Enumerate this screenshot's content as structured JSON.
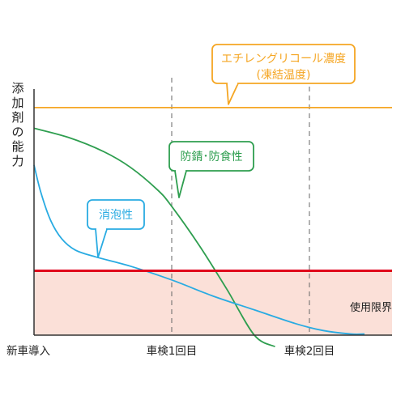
{
  "chart_data": {
    "type": "line",
    "ylabel": "添加剤の能力",
    "categories": [
      "新車導入",
      "車検1回目",
      "車検2回目"
    ],
    "x_range": [
      0,
      2.6
    ],
    "y_range": [
      0,
      100
    ],
    "limit": {
      "label": "使用限界",
      "value": 28
    },
    "series": [
      {
        "name": "エチレングリコール濃度",
        "name_sub": "(凍結温度)",
        "color": "#f5a623",
        "x": [
          0,
          2.6
        ],
        "y": [
          99,
          99
        ]
      },
      {
        "name": "防錆･防食性",
        "color": "#2e9e4f",
        "x": [
          0,
          0.25,
          0.5,
          0.7,
          0.9,
          1.0,
          1.2,
          1.4,
          1.6,
          1.75
        ],
        "y": [
          90,
          86,
          80,
          73,
          63,
          56,
          39,
          20,
          0,
          -5
        ]
      },
      {
        "name": "消泡性",
        "color": "#29abe2",
        "x": [
          0,
          0.05,
          0.12,
          0.2,
          0.3,
          0.45,
          0.7,
          1.0,
          1.3,
          1.6,
          1.9,
          2.1,
          2.3,
          2.4
        ],
        "y": [
          74,
          62,
          50,
          42,
          37,
          34,
          30,
          24,
          17,
          11,
          5,
          2,
          0.5,
          0.5
        ]
      }
    ]
  },
  "colors": {
    "limit_line": "#e0001b",
    "limit_fill": "#fbe0d8",
    "axis": "#333333",
    "dashed": "#666666"
  }
}
